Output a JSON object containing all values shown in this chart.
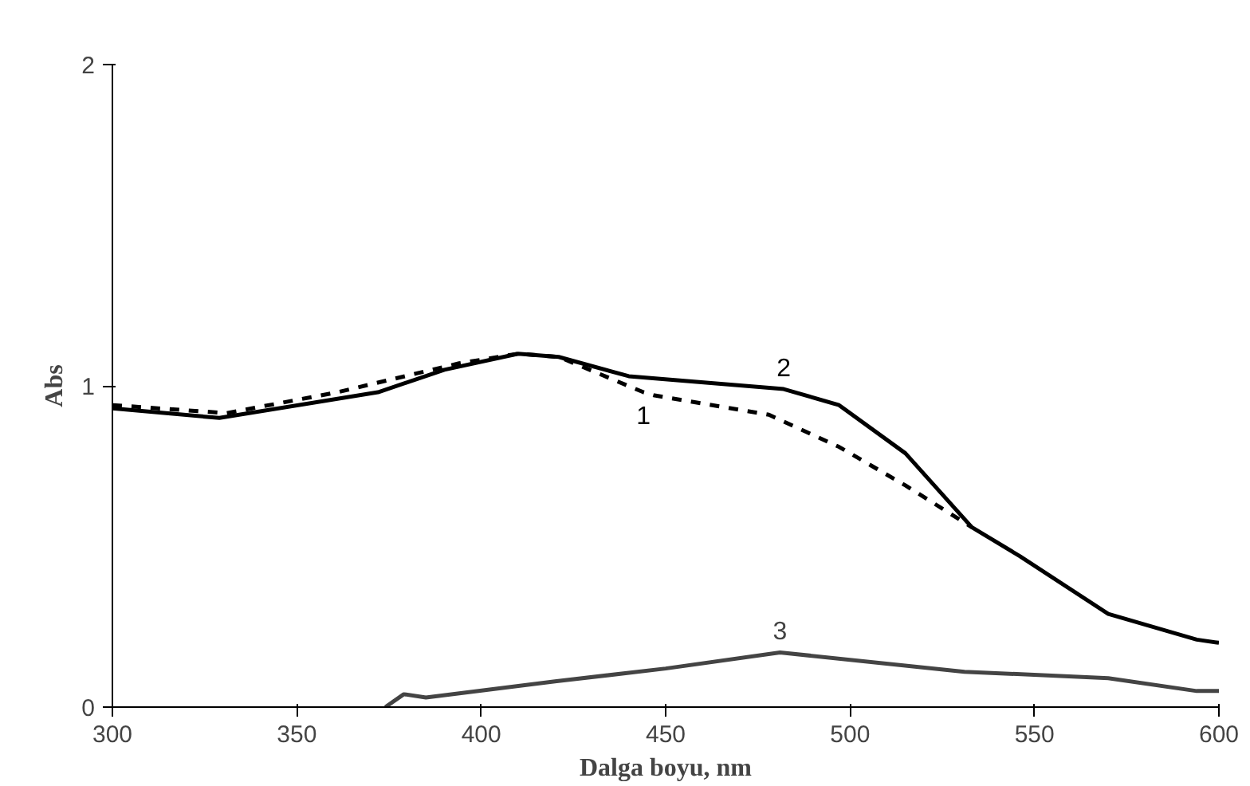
{
  "chart_data": {
    "type": "line",
    "xlabel": "Dalga boyu, nm",
    "ylabel": "Abs",
    "xlim": [
      300,
      600
    ],
    "ylim": [
      0,
      2
    ],
    "xticks": [
      300,
      350,
      400,
      450,
      500,
      550,
      600
    ],
    "yticks": [
      0,
      1,
      2
    ],
    "grid": false,
    "marker": "none",
    "series": [
      {
        "name": "1",
        "color": "#000000",
        "line_style": "dashed",
        "x": [
          300,
          331,
          361,
          394,
          410,
          421,
          444,
          447,
          478,
          497,
          515,
          533
        ],
        "values": [
          0.94,
          0.915,
          0.98,
          1.07,
          1.1,
          1.09,
          0.98,
          0.97,
          0.91,
          0.81,
          0.69,
          0.56
        ]
      },
      {
        "name": "2",
        "color": "#000000",
        "line_style": "solid",
        "x": [
          300,
          329,
          372,
          390,
          410,
          421,
          440,
          482,
          497,
          515,
          533,
          546,
          570,
          594,
          600
        ],
        "values": [
          0.93,
          0.9,
          0.98,
          1.05,
          1.1,
          1.09,
          1.03,
          0.99,
          0.94,
          0.79,
          0.56,
          0.47,
          0.29,
          0.21,
          0.2
        ]
      },
      {
        "name": "3",
        "color": "#444444",
        "line_style": "solid",
        "x": [
          374,
          379,
          385,
          420,
          450,
          481,
          531,
          570,
          594,
          600
        ],
        "values": [
          0.0,
          0.04,
          0.03,
          0.08,
          0.12,
          0.17,
          0.11,
          0.09,
          0.05,
          0.05
        ]
      }
    ]
  }
}
